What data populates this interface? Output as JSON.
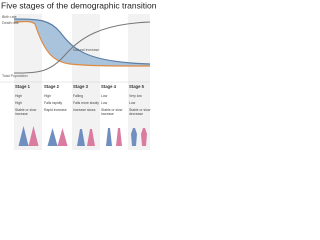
{
  "header": {
    "title": "Five stages of the demographic transition"
  },
  "curves": {
    "birth_rate": "Birth rate",
    "death_rate": "Death rate",
    "natural_increase": "Natural increase",
    "total_population": "Total Population"
  },
  "stages": [
    {
      "name": "Stage 1",
      "birth": "High",
      "death": "High",
      "growth": "Stable or slow increase"
    },
    {
      "name": "Stage 2",
      "birth": "High",
      "death": "Falls rapidly",
      "growth": "Rapid increase"
    },
    {
      "name": "Stage 3",
      "birth": "Falling",
      "death": "Falls more slowly",
      "growth": "Increase slows"
    },
    {
      "name": "Stage 4",
      "birth": "Low",
      "death": "Low",
      "growth": "Stable or slow increase"
    },
    {
      "name": "Stage 5",
      "birth": "Very low",
      "death": "Low",
      "growth": "Stable or slow decrease"
    }
  ]
}
